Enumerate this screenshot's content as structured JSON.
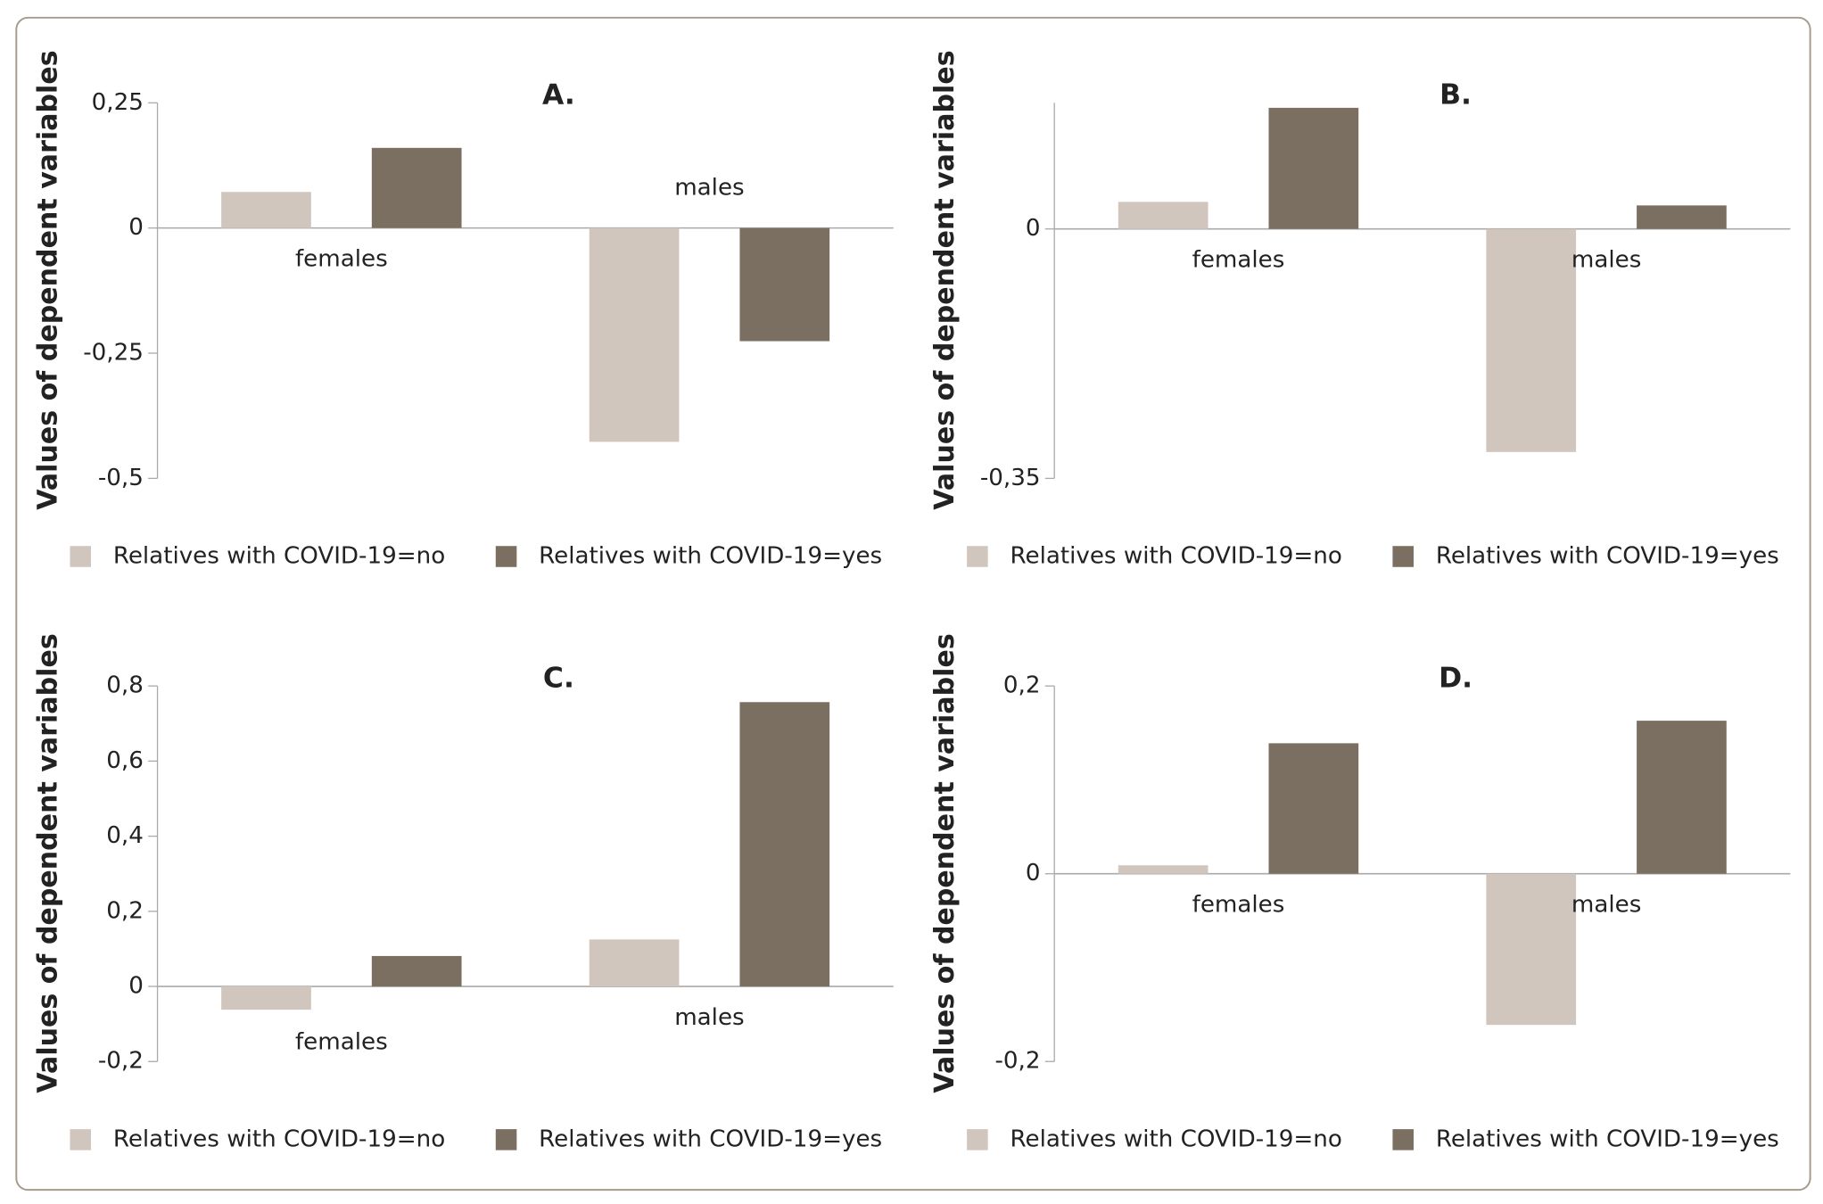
{
  "chart_data": [
    {
      "type": "bar",
      "title": "A.",
      "y_label": "Values of dependent variables",
      "categories": [
        "females",
        "males"
      ],
      "series": [
        {
          "name": "Relatives with COVID-19=no",
          "color": "#d0c6bd",
          "values": [
            0.072,
            -0.427
          ]
        },
        {
          "name": "Relatives with COVID-19=yes",
          "color": "#7b6f62",
          "values": [
            0.16,
            -0.226
          ]
        }
      ],
      "ylim": [
        -0.5,
        0.25
      ],
      "yticks": [
        {
          "value": 0.25,
          "label": "0,25"
        },
        0,
        {
          "value": -0.25,
          "label": "-0,25"
        },
        {
          "value": -0.5,
          "label": "-0,5"
        }
      ]
    },
    {
      "type": "bar",
      "title": "B.",
      "y_label": "Values of dependent variables",
      "categories": [
        "females",
        "males"
      ],
      "series": [
        {
          "name": "Relatives with COVID-19=no",
          "color": "#d0c6bd",
          "values": [
            0.038,
            -0.313
          ]
        },
        {
          "name": "Relatives with COVID-19=yes",
          "color": "#7b6f62",
          "values": [
            0.17,
            0.033
          ]
        }
      ],
      "ylim": [
        -0.35,
        0.177
      ],
      "yticks": [
        0,
        {
          "value": -0.35,
          "label": "-0,35"
        }
      ]
    },
    {
      "type": "bar",
      "title": "C.",
      "y_label": "Values of dependent variables",
      "categories": [
        "females",
        "males"
      ],
      "series": [
        {
          "name": "Relatives with COVID-19=no",
          "color": "#d0c6bd",
          "values": [
            -0.062,
            0.125
          ]
        },
        {
          "name": "Relatives with COVID-19=yes",
          "color": "#7b6f62",
          "values": [
            0.081,
            0.757
          ]
        }
      ],
      "ylim": [
        -0.2,
        0.8
      ],
      "yticks": [
        {
          "value": 0.8,
          "label": "0,8"
        },
        {
          "value": 0.6,
          "label": "0,6"
        },
        {
          "value": 0.4,
          "label": "0,4"
        },
        {
          "value": 0.2,
          "label": "0,2"
        },
        0,
        {
          "value": -0.2,
          "label": "-0,2"
        }
      ]
    },
    {
      "type": "bar",
      "title": "D.",
      "y_label": "Values of dependent variables",
      "categories": [
        "females",
        "males"
      ],
      "series": [
        {
          "name": "Relatives with COVID-19=no",
          "color": "#d0c6bd",
          "values": [
            0.009,
            -0.161
          ]
        },
        {
          "name": "Relatives with COVID-19=yes",
          "color": "#7b6f62",
          "values": [
            0.139,
            0.163
          ]
        }
      ],
      "ylim": [
        -0.2,
        0.2
      ],
      "yticks": [
        {
          "value": 0.2,
          "label": "0,2"
        },
        0,
        {
          "value": -0.2,
          "label": "-0,2"
        }
      ]
    }
  ]
}
